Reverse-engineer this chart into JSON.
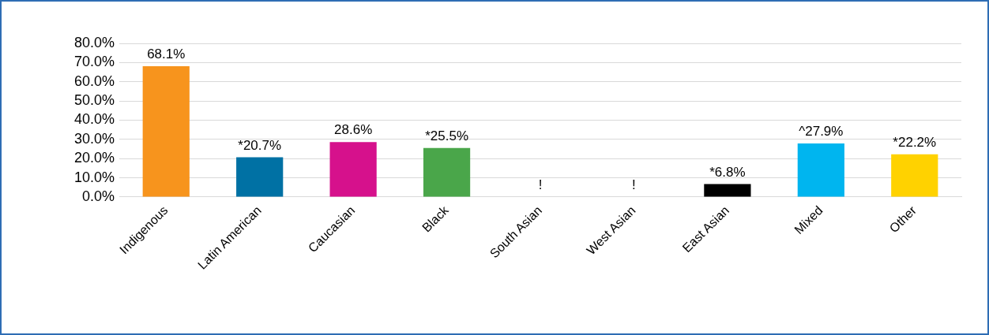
{
  "chart_data": {
    "type": "bar",
    "categories": [
      "Indigenous",
      "Latin American",
      "Caucasian",
      "Black",
      "South Asian",
      "West Asian",
      "East Asian",
      "Mixed",
      "Other"
    ],
    "values": [
      68.1,
      20.7,
      28.6,
      25.5,
      null,
      null,
      6.8,
      27.9,
      22.2
    ],
    "colors": [
      "#f7941d",
      "#0071a4",
      "#d6118c",
      "#4aa64a",
      null,
      null,
      "#000000",
      "#00b5ef",
      "#ffd200"
    ],
    "value_labels": [
      "68.1%",
      "*20.7%",
      "28.6%",
      "*25.5%",
      "!",
      "!",
      "*6.8%",
      "^27.9%",
      "*22.2%"
    ],
    "ylim": [
      0,
      80
    ],
    "yticks": [
      {
        "value": 0,
        "label": "0.0%"
      },
      {
        "value": 10,
        "label": "10.0%"
      },
      {
        "value": 20,
        "label": "20.0%"
      },
      {
        "value": 30,
        "label": "30.0%"
      },
      {
        "value": 40,
        "label": "40.0%"
      },
      {
        "value": 50,
        "label": "50.0%"
      },
      {
        "value": 60,
        "label": "60.0%"
      },
      {
        "value": 70,
        "label": "70.0%"
      },
      {
        "value": 80,
        "label": "80.0%"
      }
    ],
    "grid": "y",
    "legend": false
  }
}
